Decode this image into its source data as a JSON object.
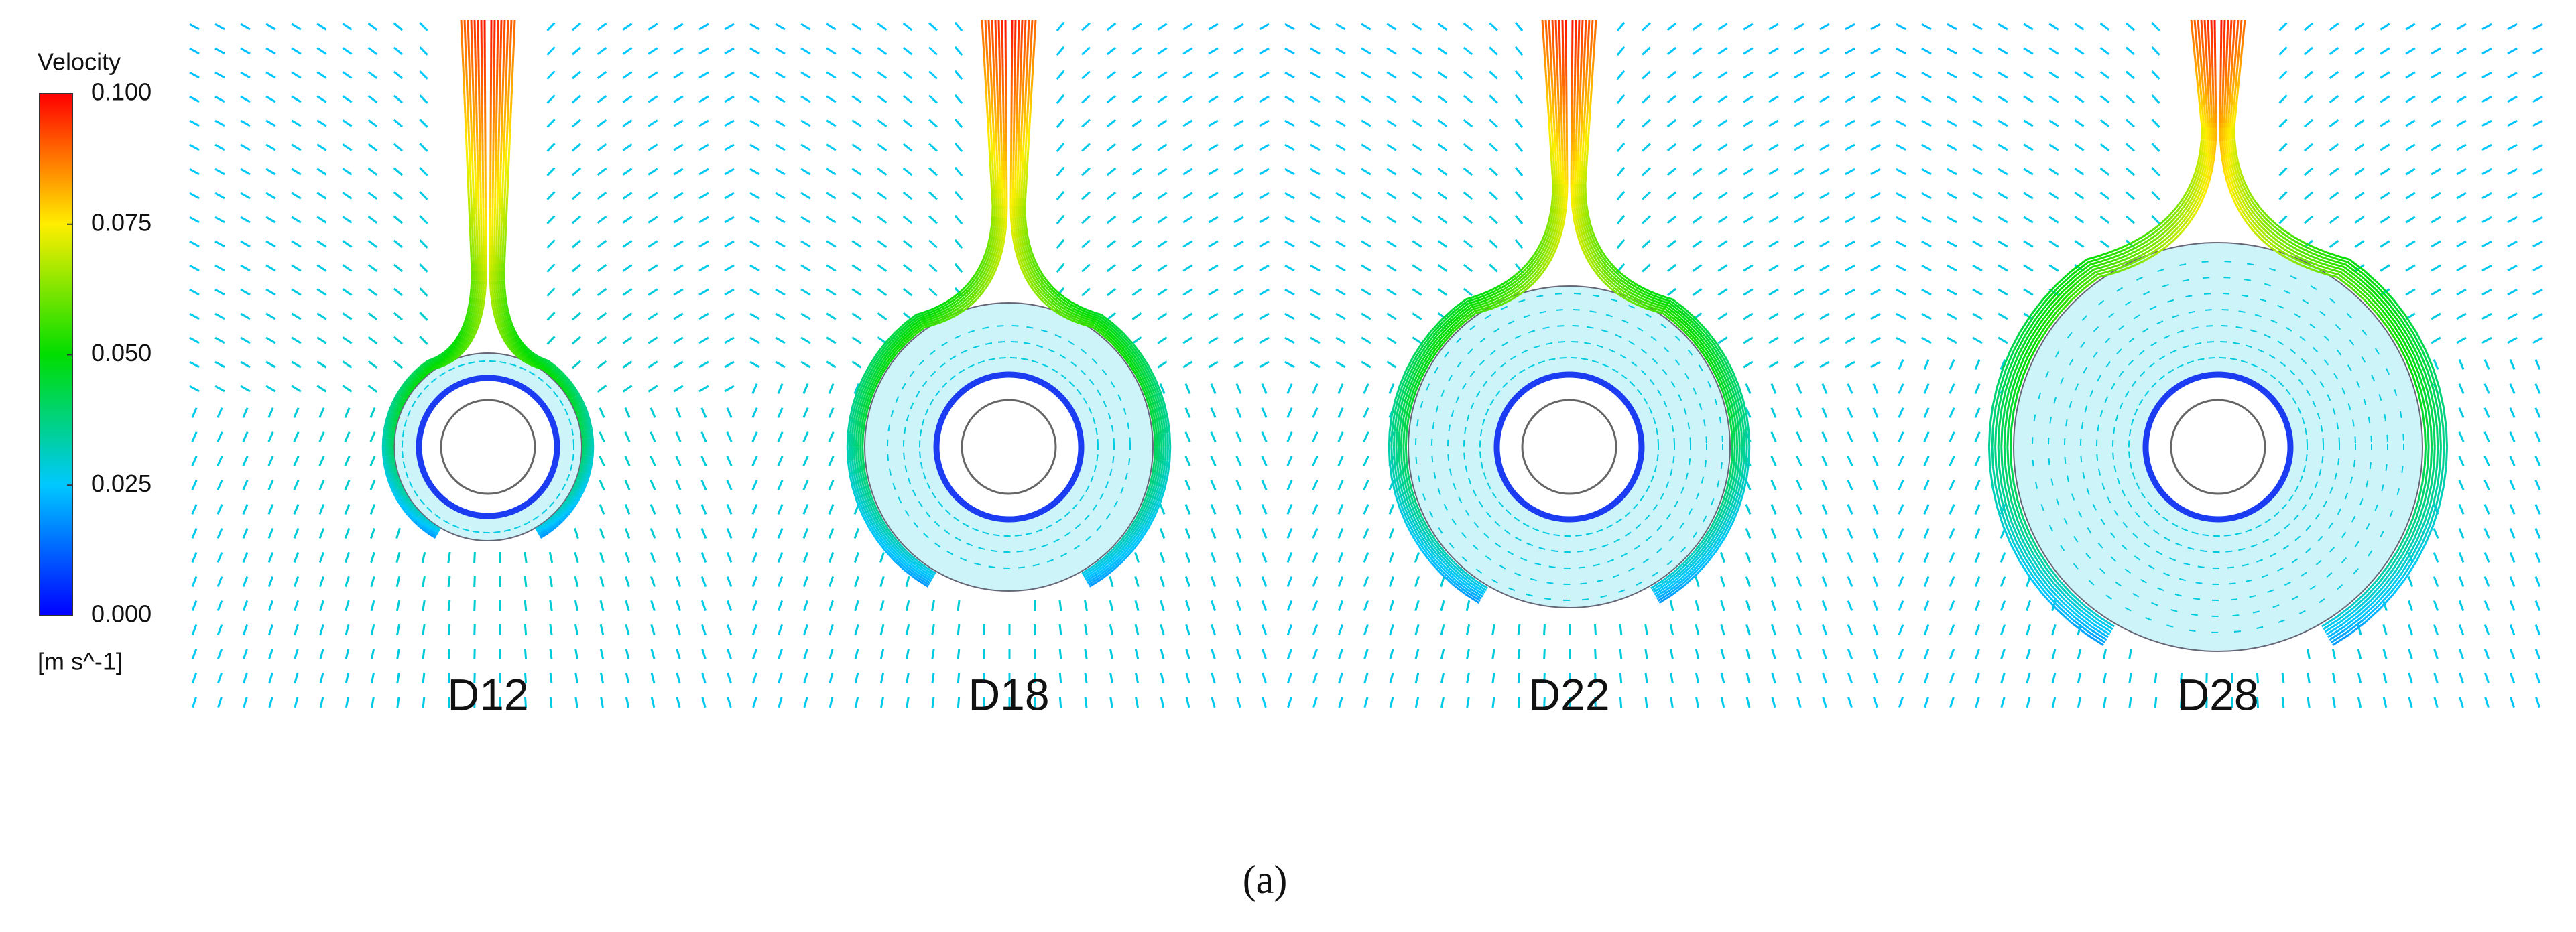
{
  "colorbar": {
    "title": "Velocity",
    "unit": "[m s^-1]",
    "range": [
      0,
      0.1
    ],
    "ticks": [
      {
        "value": 0,
        "label": "0.000"
      },
      {
        "value": 0.025,
        "label": "0.025"
      },
      {
        "value": 0.05,
        "label": "0.050"
      },
      {
        "value": 0.075,
        "label": "0.075"
      },
      {
        "value": 0.1,
        "label": "0.100"
      }
    ]
  },
  "panels": [
    {
      "label": "D12"
    },
    {
      "label": "D18"
    },
    {
      "label": "D22"
    },
    {
      "label": "D28"
    }
  ],
  "caption": "(a)"
}
